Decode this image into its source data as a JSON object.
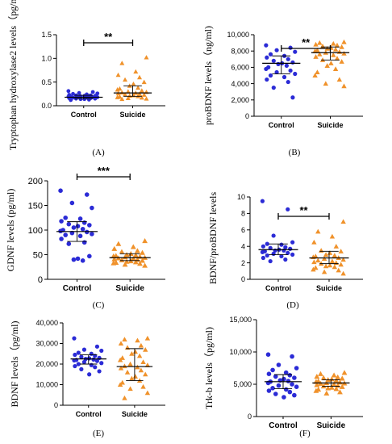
{
  "colors": {
    "control": "#2b2bd6",
    "suicide": "#f0922b",
    "axis": "#000000"
  },
  "chart_data": [
    {
      "type": "scatter",
      "panel": "(A)",
      "ylabel": "Tryptophan hydroxylase2 levels（pg/ml)",
      "categories": [
        "Control",
        "Suicide"
      ],
      "ylim": [
        0,
        1.5
      ],
      "yticks": [
        "0.0",
        "0.5",
        "1.0",
        "1.5"
      ],
      "ytick_values": [
        0,
        0.5,
        1.0,
        1.5
      ],
      "significance": "**",
      "series": [
        {
          "name": "Control",
          "marker": "circle",
          "values": [
            0.31,
            0.29,
            0.27,
            0.26,
            0.25,
            0.24,
            0.23,
            0.22,
            0.22,
            0.21,
            0.21,
            0.2,
            0.2,
            0.19,
            0.19,
            0.18,
            0.18,
            0.18,
            0.17,
            0.17,
            0.16,
            0.16,
            0.15,
            0.15,
            0.14,
            0.14,
            0.13,
            0.12
          ],
          "median": 0.18,
          "iqr": [
            0.15,
            0.22
          ]
        },
        {
          "name": "Suicide",
          "marker": "triangle",
          "values": [
            1.02,
            0.9,
            0.72,
            0.65,
            0.6,
            0.55,
            0.5,
            0.46,
            0.42,
            0.38,
            0.36,
            0.34,
            0.32,
            0.3,
            0.29,
            0.28,
            0.27,
            0.26,
            0.25,
            0.24,
            0.23,
            0.22,
            0.21,
            0.2,
            0.19,
            0.18,
            0.17,
            0.16,
            0.15,
            0.14
          ],
          "median": 0.27,
          "iqr": [
            0.2,
            0.42
          ]
        }
      ]
    },
    {
      "type": "scatter",
      "panel": "(B)",
      "ylabel": "proBDNF levels（ng/ml)",
      "categories": [
        "Control",
        "Suicide"
      ],
      "ylim": [
        0,
        10000
      ],
      "yticks": [
        "0",
        "2,000",
        "4,000",
        "6,000",
        "8,000",
        "10,000"
      ],
      "ytick_values": [
        0,
        2000,
        4000,
        6000,
        8000,
        10000
      ],
      "significance": "**",
      "series": [
        {
          "name": "Control",
          "marker": "circle",
          "values": [
            8700,
            8400,
            8100,
            7900,
            7600,
            7400,
            7200,
            7000,
            6800,
            6600,
            6500,
            6400,
            6200,
            6000,
            5800,
            5600,
            5400,
            5200,
            5000,
            4800,
            4500,
            4200,
            3500,
            2300
          ],
          "median": 6500,
          "iqr": [
            5200,
            7400
          ]
        },
        {
          "name": "Suicide",
          "marker": "triangle",
          "values": [
            9100,
            9000,
            8900,
            8800,
            8700,
            8600,
            8500,
            8400,
            8300,
            8200,
            8100,
            8000,
            7900,
            7800,
            7700,
            7600,
            7500,
            7300,
            7100,
            6900,
            6700,
            6500,
            6200,
            5800,
            5400,
            5000,
            4500,
            4000,
            3700
          ],
          "median": 7800,
          "iqr": [
            6900,
            8500
          ]
        }
      ]
    },
    {
      "type": "scatter",
      "panel": "(C)",
      "ylabel": "GDNF levels (pg/ml)",
      "categories": [
        "Control",
        "Suicide"
      ],
      "ylim": [
        0,
        200
      ],
      "yticks": [
        "0",
        "50",
        "100",
        "150",
        "200"
      ],
      "ytick_values": [
        0,
        50,
        100,
        150,
        200
      ],
      "significance": "***",
      "series": [
        {
          "name": "Control",
          "marker": "circle",
          "values": [
            180,
            172,
            155,
            145,
            125,
            123,
            118,
            115,
            112,
            110,
            108,
            105,
            102,
            100,
            98,
            96,
            94,
            92,
            90,
            88,
            82,
            75,
            72,
            47,
            42,
            40,
            38
          ],
          "median": 97,
          "iqr": [
            77,
            117
          ]
        },
        {
          "name": "Suicide",
          "marker": "triangle",
          "values": [
            78,
            72,
            66,
            62,
            58,
            56,
            54,
            52,
            50,
            49,
            48,
            47,
            46,
            45,
            44,
            43,
            42,
            41,
            40,
            39,
            38,
            37,
            36,
            35,
            34,
            33,
            32,
            30,
            28
          ],
          "median": 44,
          "iqr": [
            38,
            52
          ]
        }
      ]
    },
    {
      "type": "scatter",
      "panel": "(D)",
      "ylabel": "BDNF/proBDNF levels",
      "categories": [
        "Control",
        "Suicide"
      ],
      "ylim": [
        0,
        10
      ],
      "yticks": [
        "0",
        "2",
        "4",
        "6",
        "8",
        "10"
      ],
      "ytick_values": [
        0,
        2,
        4,
        6,
        8,
        10
      ],
      "significance": "**",
      "series": [
        {
          "name": "Control",
          "marker": "circle",
          "values": [
            9.5,
            8.5,
            5.3,
            4.5,
            4.3,
            4.2,
            4.0,
            3.9,
            3.8,
            3.7,
            3.6,
            3.5,
            3.5,
            3.4,
            3.3,
            3.2,
            3.1,
            3.0,
            2.9,
            2.8,
            2.6,
            2.4,
            2.2
          ],
          "median": 3.6,
          "iqr": [
            3.0,
            4.3
          ]
        },
        {
          "name": "Suicide",
          "marker": "triangle",
          "values": [
            7.0,
            5.8,
            5.2,
            4.5,
            4.0,
            3.5,
            3.4,
            3.2,
            3.0,
            2.9,
            2.8,
            2.7,
            2.6,
            2.5,
            2.4,
            2.3,
            2.2,
            2.1,
            2.0,
            1.9,
            1.8,
            1.7,
            1.6,
            1.5,
            1.4,
            1.2,
            1.1,
            0.9,
            0.7
          ],
          "median": 2.6,
          "iqr": [
            1.9,
            3.4
          ]
        }
      ]
    },
    {
      "type": "scatter",
      "panel": "(E)",
      "ylabel": "BDNF levels（pg/ml)",
      "categories": [
        "Control",
        "Suicide"
      ],
      "ylim": [
        0,
        40000
      ],
      "yticks": [
        "0",
        "10,000",
        "20,000",
        "30,000",
        "40,000"
      ],
      "ytick_values": [
        0,
        10000,
        20000,
        30000,
        40000
      ],
      "significance": "",
      "series": [
        {
          "name": "Control",
          "marker": "circle",
          "values": [
            32500,
            28500,
            27000,
            26500,
            25500,
            25000,
            24500,
            24000,
            23500,
            23000,
            22800,
            22500,
            22200,
            22000,
            21800,
            21500,
            21000,
            20500,
            20000,
            19500,
            19000,
            18500,
            17500,
            16500,
            15000
          ],
          "median": 22500,
          "iqr": [
            20000,
            24500
          ]
        },
        {
          "name": "Suicide",
          "marker": "triangle",
          "values": [
            32500,
            32000,
            31500,
            30000,
            29000,
            28000,
            27000,
            26000,
            25000,
            24000,
            23000,
            22000,
            21000,
            20000,
            19500,
            19000,
            18500,
            18000,
            17000,
            16000,
            15000,
            14000,
            13000,
            12000,
            11000,
            10000,
            9000,
            8000,
            6000,
            3500
          ],
          "median": 18800,
          "iqr": [
            12000,
            27500
          ]
        }
      ]
    },
    {
      "type": "scatter",
      "panel": "(F)",
      "ylabel": "Trk-b levels（pg/ml)",
      "categories": [
        "Control",
        "Suicide"
      ],
      "ylim": [
        0,
        15000
      ],
      "yticks": [
        "0",
        "5,000",
        "10,000",
        "15,000"
      ],
      "ytick_values": [
        0,
        5000,
        10000,
        15000
      ],
      "significance": "",
      "series": [
        {
          "name": "Control",
          "marker": "circle",
          "values": [
            9600,
            9300,
            8000,
            7500,
            7200,
            6800,
            6600,
            6400,
            6200,
            6000,
            5800,
            5600,
            5500,
            5400,
            5200,
            5000,
            4800,
            4600,
            4400,
            4200,
            4000,
            3800,
            3500,
            3300,
            3000
          ],
          "median": 5400,
          "iqr": [
            4300,
            6500
          ]
        },
        {
          "name": "Suicide",
          "marker": "triangle",
          "values": [
            6800,
            6600,
            6400,
            6200,
            6100,
            6000,
            5900,
            5800,
            5700,
            5600,
            5500,
            5400,
            5300,
            5200,
            5150,
            5100,
            5000,
            4900,
            4800,
            4700,
            4600,
            4500,
            4400,
            4300,
            4200,
            4000,
            3800,
            3600
          ],
          "median": 5200,
          "iqr": [
            4700,
            5700
          ]
        }
      ]
    }
  ]
}
